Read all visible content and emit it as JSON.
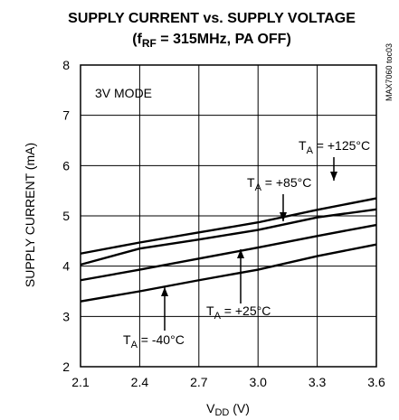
{
  "chart_data": {
    "type": "line",
    "title_line1": "SUPPLY CURRENT vs. SUPPLY VOLTAGE",
    "title_line2_prefix": "(f",
    "title_line2_sub": "RF",
    "title_line2_suffix": " = 315MHz, PA OFF)",
    "xlabel_main": "V",
    "xlabel_sub": "DD",
    "xlabel_unit": " (V)",
    "ylabel": "SUPPLY CURRENT (mA)",
    "xlim": [
      2.1,
      3.6
    ],
    "ylim": [
      2,
      8
    ],
    "x_ticks": [
      "2.1",
      "2.4",
      "2.7",
      "3.0",
      "3.3",
      "3.6"
    ],
    "y_ticks": [
      "2",
      "3",
      "4",
      "5",
      "6",
      "7",
      "8"
    ],
    "grid": true,
    "mode_label": "3V MODE",
    "figure_code": "MAX7060 toc03",
    "series": [
      {
        "name": "T_A = +125°C",
        "x": [
          2.1,
          2.4,
          2.7,
          3.0,
          3.3,
          3.6
        ],
        "y": [
          4.25,
          4.47,
          4.67,
          4.87,
          5.12,
          5.35
        ]
      },
      {
        "name": "T_A = +85°C",
        "x": [
          2.1,
          2.4,
          2.7,
          3.0,
          3.3,
          3.6
        ],
        "y": [
          4.03,
          4.35,
          4.53,
          4.72,
          4.97,
          5.13
        ]
      },
      {
        "name": "T_A = +25°C",
        "x": [
          2.1,
          2.4,
          2.7,
          3.0,
          3.3,
          3.6
        ],
        "y": [
          3.72,
          3.93,
          4.15,
          4.37,
          4.6,
          4.82
        ]
      },
      {
        "name": "T_A = -40°C",
        "x": [
          2.1,
          2.4,
          2.7,
          3.0,
          3.3,
          3.6
        ],
        "y": [
          3.3,
          3.5,
          3.72,
          3.93,
          4.2,
          4.43
        ]
      }
    ],
    "annotations": [
      {
        "pre": "T",
        "sub": "A",
        "post": " = +125°C"
      },
      {
        "pre": "T",
        "sub": "A",
        "post": " = +85°C"
      },
      {
        "pre": "T",
        "sub": "A",
        "post": " = +25°C"
      },
      {
        "pre": "T",
        "sub": "A",
        "post": " = -40°C"
      }
    ]
  }
}
